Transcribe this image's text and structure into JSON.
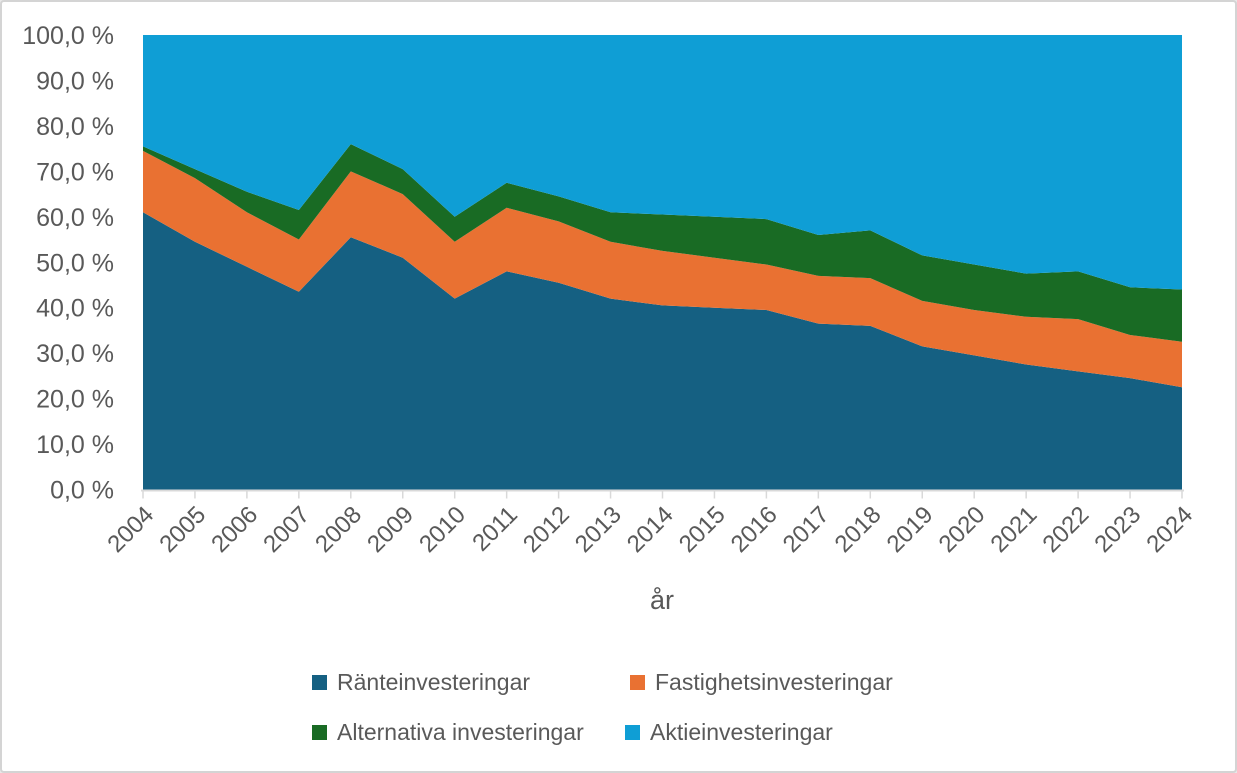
{
  "chart_data": {
    "type": "area",
    "stacked": true,
    "percent_stacked": true,
    "title": "",
    "xlabel": "år",
    "ylabel": "",
    "x": [
      "2004",
      "2005",
      "2006",
      "2007",
      "2008",
      "2009",
      "2010",
      "2011",
      "2012",
      "2013",
      "2014",
      "2015",
      "2016",
      "2017",
      "2018",
      "2019",
      "2020",
      "2021",
      "2022",
      "2023",
      "2024"
    ],
    "series": [
      {
        "name": "Ränteinvesteringar",
        "color": "#156082",
        "values": [
          61.0,
          54.5,
          49.0,
          43.5,
          55.5,
          51.0,
          42.0,
          48.0,
          45.5,
          42.0,
          40.5,
          40.0,
          39.5,
          36.5,
          36.0,
          31.5,
          29.5,
          27.5,
          26.0,
          24.5,
          22.5
        ]
      },
      {
        "name": "Fastighetsinvesteringar",
        "color": "#E97132",
        "values": [
          13.5,
          14.0,
          12.0,
          11.5,
          14.5,
          14.0,
          12.5,
          14.0,
          13.5,
          12.5,
          12.0,
          11.0,
          10.0,
          10.5,
          10.5,
          10.0,
          10.0,
          10.5,
          11.5,
          9.5,
          10.0
        ]
      },
      {
        "name": "Alternativa investeringar",
        "color": "#196B24",
        "values": [
          1.0,
          2.0,
          4.5,
          6.5,
          6.0,
          5.5,
          5.5,
          5.5,
          5.5,
          6.5,
          8.0,
          9.0,
          10.0,
          9.0,
          10.5,
          10.0,
          10.0,
          9.5,
          10.5,
          10.5,
          11.5
        ]
      },
      {
        "name": "Aktieinvesteringar",
        "color": "#0F9ED5",
        "values": [
          24.5,
          29.5,
          34.5,
          38.5,
          24.0,
          29.5,
          40.0,
          32.5,
          35.5,
          39.0,
          39.5,
          40.0,
          40.5,
          44.0,
          43.0,
          48.5,
          50.5,
          52.5,
          52.0,
          55.5,
          56.0
        ]
      }
    ],
    "y_axis": {
      "min": 0,
      "max": 100,
      "step": 10,
      "tick_labels": [
        "100,0 %",
        "90,0 %",
        "80,0 %",
        "70,0 %",
        "60,0 %",
        "50,0 %",
        "40,0 %",
        "30,0 %",
        "20,0 %",
        "10,0 %",
        "0,0 %"
      ]
    },
    "grid": false,
    "legend_position": "bottom",
    "colors": {
      "axis_text": "#595959",
      "axis_line": "#d9d9d9"
    }
  }
}
